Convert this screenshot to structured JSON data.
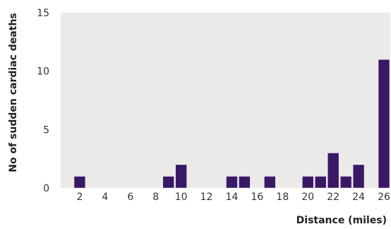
{
  "chart_data": {
    "type": "bar",
    "xlabel": "Distance (miles)",
    "ylabel": "No of sudden cardiac deaths",
    "ylim": [
      0,
      15
    ],
    "yticks": [
      0,
      5,
      10,
      15
    ],
    "xlim": [
      0.5,
      26.5
    ],
    "xticks": [
      2,
      4,
      6,
      8,
      10,
      12,
      14,
      16,
      18,
      20,
      22,
      24,
      26
    ],
    "x": [
      1,
      2,
      3,
      4,
      5,
      6,
      7,
      8,
      9,
      10,
      11,
      12,
      13,
      14,
      15,
      16,
      17,
      18,
      19,
      20,
      21,
      22,
      23,
      24,
      25,
      26
    ],
    "values": [
      0,
      1,
      0,
      0,
      0,
      0,
      0,
      0,
      1,
      2,
      0,
      0,
      0,
      1,
      1,
      0,
      1,
      0,
      0,
      1,
      1,
      3,
      1,
      2,
      0,
      11
    ],
    "grid": false,
    "colors": {
      "plot_background": "#eceae9",
      "bar_fill": "#3a1866",
      "bar_stroke": "#ffffff",
      "text": "#333333"
    }
  }
}
